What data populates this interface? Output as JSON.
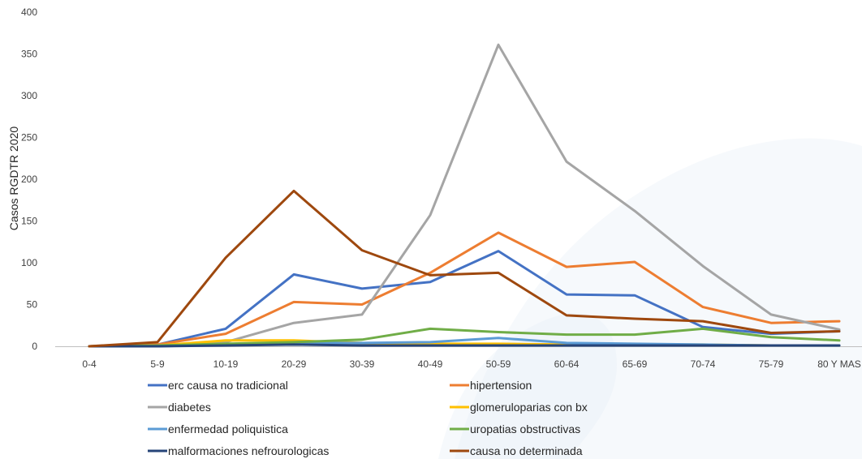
{
  "chart_data": {
    "type": "line",
    "ylabel": "Casos RGDTR 2020",
    "xlabel": "",
    "ylim": [
      0,
      400
    ],
    "yticks": [
      0,
      50,
      100,
      150,
      200,
      250,
      300,
      350,
      400
    ],
    "categories": [
      "0-4",
      "5-9",
      "10-19",
      "20-29",
      "30-39",
      "40-49",
      "50-59",
      "60-64",
      "65-69",
      "70-74",
      "75-79",
      "80 Y MAS"
    ],
    "grid": false,
    "legend_position": "bottom",
    "series": [
      {
        "name": "erc causa no tradicional",
        "color": "#4472C4",
        "values": [
          0,
          2,
          21,
          86,
          69,
          77,
          114,
          62,
          61,
          23,
          15,
          18
        ]
      },
      {
        "name": "hipertension",
        "color": "#ED7D31",
        "values": [
          0,
          2,
          15,
          53,
          50,
          88,
          136,
          95,
          101,
          47,
          28,
          30
        ]
      },
      {
        "name": "diabetes",
        "color": "#A5A5A5",
        "values": [
          0,
          1,
          5,
          28,
          38,
          157,
          361,
          221,
          162,
          96,
          38,
          20
        ]
      },
      {
        "name": "glomeruloparias con bx",
        "color": "#FFC000",
        "values": [
          0,
          1,
          7,
          7,
          4,
          3,
          3,
          2,
          2,
          2,
          1,
          1
        ]
      },
      {
        "name": "enfermedad poliquistica",
        "color": "#5B9BD5",
        "values": [
          0,
          0,
          2,
          4,
          4,
          5,
          10,
          4,
          3,
          2,
          1,
          1
        ]
      },
      {
        "name": "uropatias obstructivas",
        "color": "#70AD47",
        "values": [
          0,
          1,
          3,
          5,
          8,
          21,
          17,
          14,
          14,
          21,
          11,
          7
        ]
      },
      {
        "name": "malformaciones nefrourologicas",
        "color": "#264478",
        "values": [
          0,
          0,
          1,
          2,
          1,
          1,
          1,
          1,
          1,
          1,
          1,
          1
        ]
      },
      {
        "name": "causa no determinada",
        "color": "#9E480E",
        "values": [
          0,
          5,
          106,
          186,
          115,
          85,
          88,
          37,
          33,
          30,
          16,
          18
        ]
      }
    ]
  }
}
